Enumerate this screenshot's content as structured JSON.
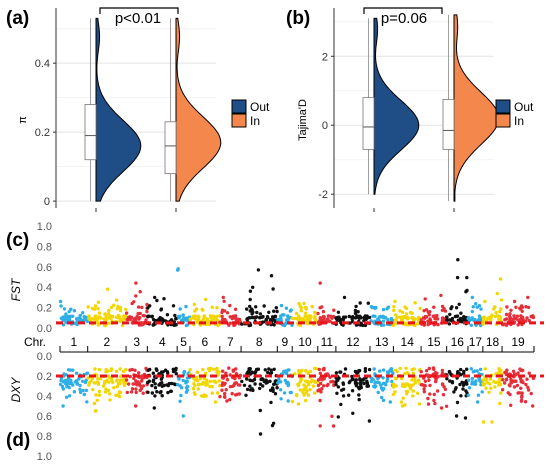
{
  "colors": {
    "out": "#1f4e86",
    "in": "#f4884c",
    "box": "#ffffff",
    "grid": "#e3e3e3",
    "axis": "#333333",
    "threshold": "#e8151b",
    "chr_cycle": [
      "#2eaee6",
      "#f1d600",
      "#e52f3a",
      "#111111"
    ]
  },
  "chart_data": [
    {
      "panel": "a",
      "type": "violin",
      "panel_label": "(a)",
      "ylabel": "π",
      "yticks": [
        0.0,
        0.2,
        0.4
      ],
      "ylim": [
        -0.02,
        0.56
      ],
      "grid": true,
      "annotation": "p<0.01",
      "legend_position": "right",
      "series": [
        {
          "name": "Out",
          "min": 0.0,
          "q1": 0.12,
          "median": 0.19,
          "q3": 0.28,
          "max": 0.53,
          "density_peak": 0.16
        },
        {
          "name": "In",
          "min": 0.0,
          "q1": 0.08,
          "median": 0.16,
          "q3": 0.23,
          "max": 0.53,
          "density_peak": 0.17
        }
      ]
    },
    {
      "panel": "b",
      "type": "violin",
      "panel_label": "(b)",
      "ylabel": "Tajima'D",
      "yticks": [
        -2,
        0,
        2
      ],
      "ylim": [
        -2.4,
        3.4
      ],
      "grid": true,
      "annotation": "p=0.06",
      "legend_position": "right",
      "series": [
        {
          "name": "Out",
          "min": -2.0,
          "q1": -0.7,
          "median": -0.05,
          "q3": 0.8,
          "max": 3.1,
          "density_peak": 0.0
        },
        {
          "name": "In",
          "min": -2.2,
          "q1": -0.7,
          "median": -0.15,
          "q3": 0.75,
          "max": 3.2,
          "density_peak": 0.2
        }
      ]
    },
    {
      "panel": "c",
      "type": "scatter",
      "panel_label": "(c)",
      "ylabel": "FST",
      "yticks": [
        0.0,
        0.2,
        0.4,
        0.6,
        0.8,
        1.0
      ],
      "ylim": [
        0,
        1.0
      ],
      "threshold": 0.05,
      "x_label_prefix": "Chr.",
      "chromosomes": [
        "1",
        "2",
        "3",
        "4",
        "5",
        "6",
        "7",
        "8",
        "9",
        "10",
        "11",
        "12",
        "13",
        "14",
        "15",
        "16",
        "17",
        "18",
        "19"
      ],
      "chromosome_points": [
        26,
        36,
        20,
        28,
        12,
        28,
        20,
        34,
        14,
        24,
        17,
        32,
        22,
        26,
        24,
        20,
        14,
        18,
        30
      ],
      "typical_value": 0.08,
      "peak_values": [
        0.26,
        0.38,
        0.44,
        0.3,
        0.58,
        0.28,
        0.3,
        0.57,
        0.22,
        0.24,
        0.44,
        0.3,
        0.2,
        0.26,
        0.32,
        0.67,
        0.3,
        0.48,
        0.3
      ]
    },
    {
      "panel": "d",
      "type": "scatter",
      "panel_label": "(d)",
      "ylabel": "DXY",
      "yticks": [
        0.0,
        0.2,
        0.4,
        0.6,
        0.8,
        1.0
      ],
      "ylim": [
        0,
        1.0
      ],
      "inverted": true,
      "threshold": 0.2,
      "chromosomes": [
        "1",
        "2",
        "3",
        "4",
        "5",
        "6",
        "7",
        "8",
        "9",
        "10",
        "11",
        "12",
        "13",
        "14",
        "15",
        "16",
        "17",
        "18",
        "19"
      ],
      "chromosome_points": [
        26,
        36,
        20,
        28,
        12,
        28,
        20,
        34,
        14,
        24,
        17,
        32,
        22,
        26,
        24,
        20,
        14,
        18,
        30
      ],
      "typical_value": 0.22,
      "peak_values": [
        0.5,
        0.55,
        0.5,
        0.52,
        0.6,
        0.46,
        0.45,
        0.78,
        0.45,
        0.48,
        0.7,
        0.65,
        0.46,
        0.5,
        0.52,
        0.62,
        0.46,
        0.66,
        0.5
      ]
    }
  ]
}
